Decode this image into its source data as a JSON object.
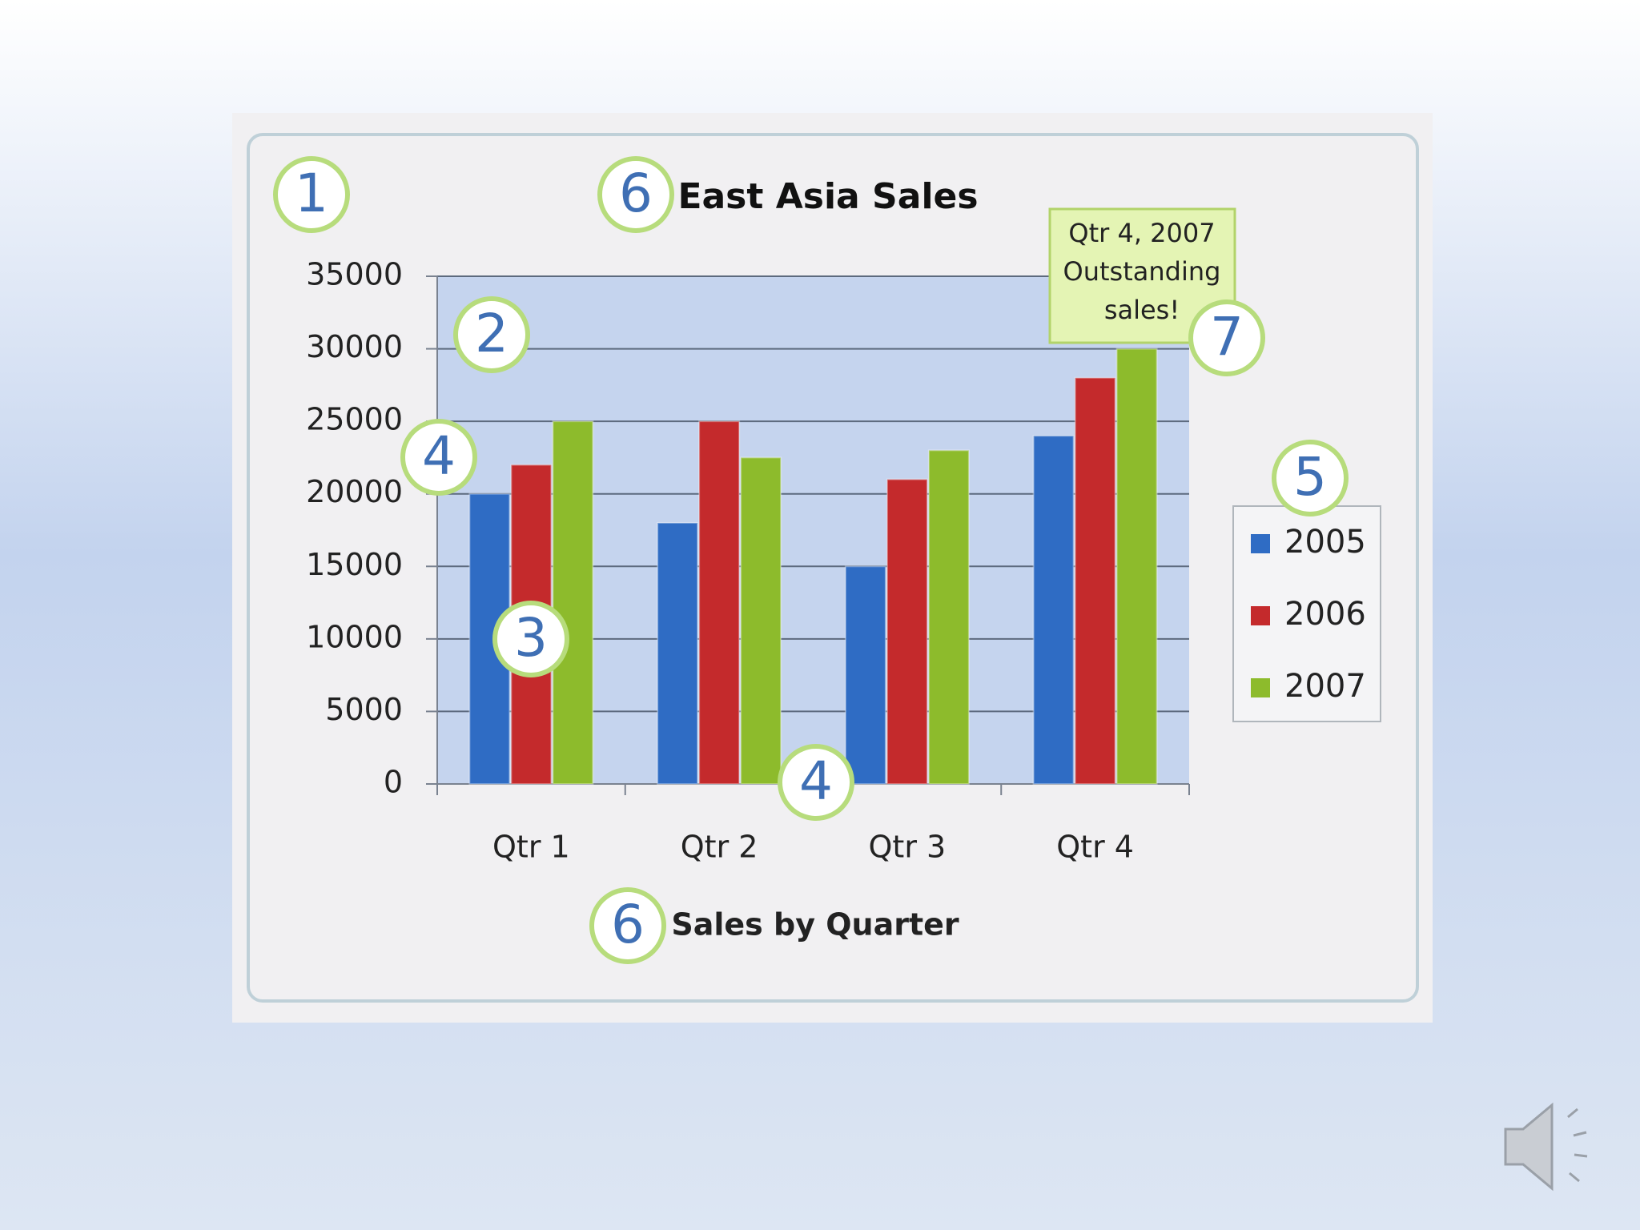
{
  "chart_data": {
    "type": "bar",
    "title": "East Asia Sales",
    "x_label": "Sales by Quarter",
    "categories": [
      "Qtr 1",
      "Qtr 2",
      "Qtr 3",
      "Qtr 4"
    ],
    "series": [
      {
        "name": "2005",
        "color": "#2f6cc4",
        "values": [
          20000,
          18000,
          15000,
          24000
        ]
      },
      {
        "name": "2006",
        "color": "#c42a2c",
        "values": [
          22000,
          25000,
          21000,
          28000
        ]
      },
      {
        "name": "2007",
        "color": "#8dbb2c",
        "values": [
          25000,
          22500,
          23000,
          30000
        ]
      }
    ],
    "ylim": [
      0,
      35000
    ],
    "yticks": [
      0,
      5000,
      10000,
      15000,
      20000,
      25000,
      30000,
      35000
    ],
    "grid": true,
    "legend": "right",
    "annotation": [
      "Qtr 4, 2007",
      "Outstanding",
      "sales!"
    ],
    "callouts": [
      "1",
      "6",
      "2",
      "4",
      "3",
      "4",
      "5",
      "7",
      "6"
    ]
  }
}
